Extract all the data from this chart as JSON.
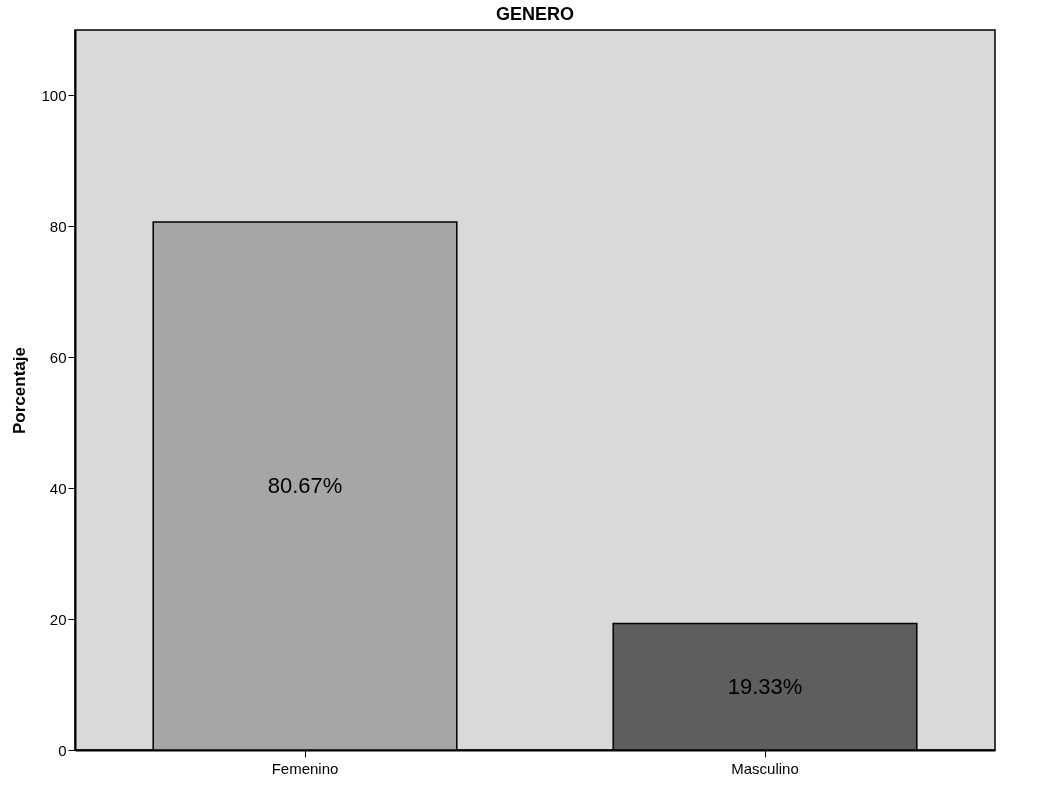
{
  "chart_data": {
    "type": "bar",
    "title": "GENERO",
    "ylabel": "Porcentaje",
    "categories": [
      "Femenino",
      "Masculino"
    ],
    "values": [
      80.67,
      19.33
    ],
    "colors": [
      "#a6a6a6",
      "#5e5e5e"
    ],
    "value_labels": [
      "80.67%",
      "19.33%"
    ],
    "ylim": [
      0,
      110
    ],
    "yticks": [
      0,
      20,
      40,
      60,
      80,
      100
    ],
    "grid": false,
    "legend": false
  }
}
